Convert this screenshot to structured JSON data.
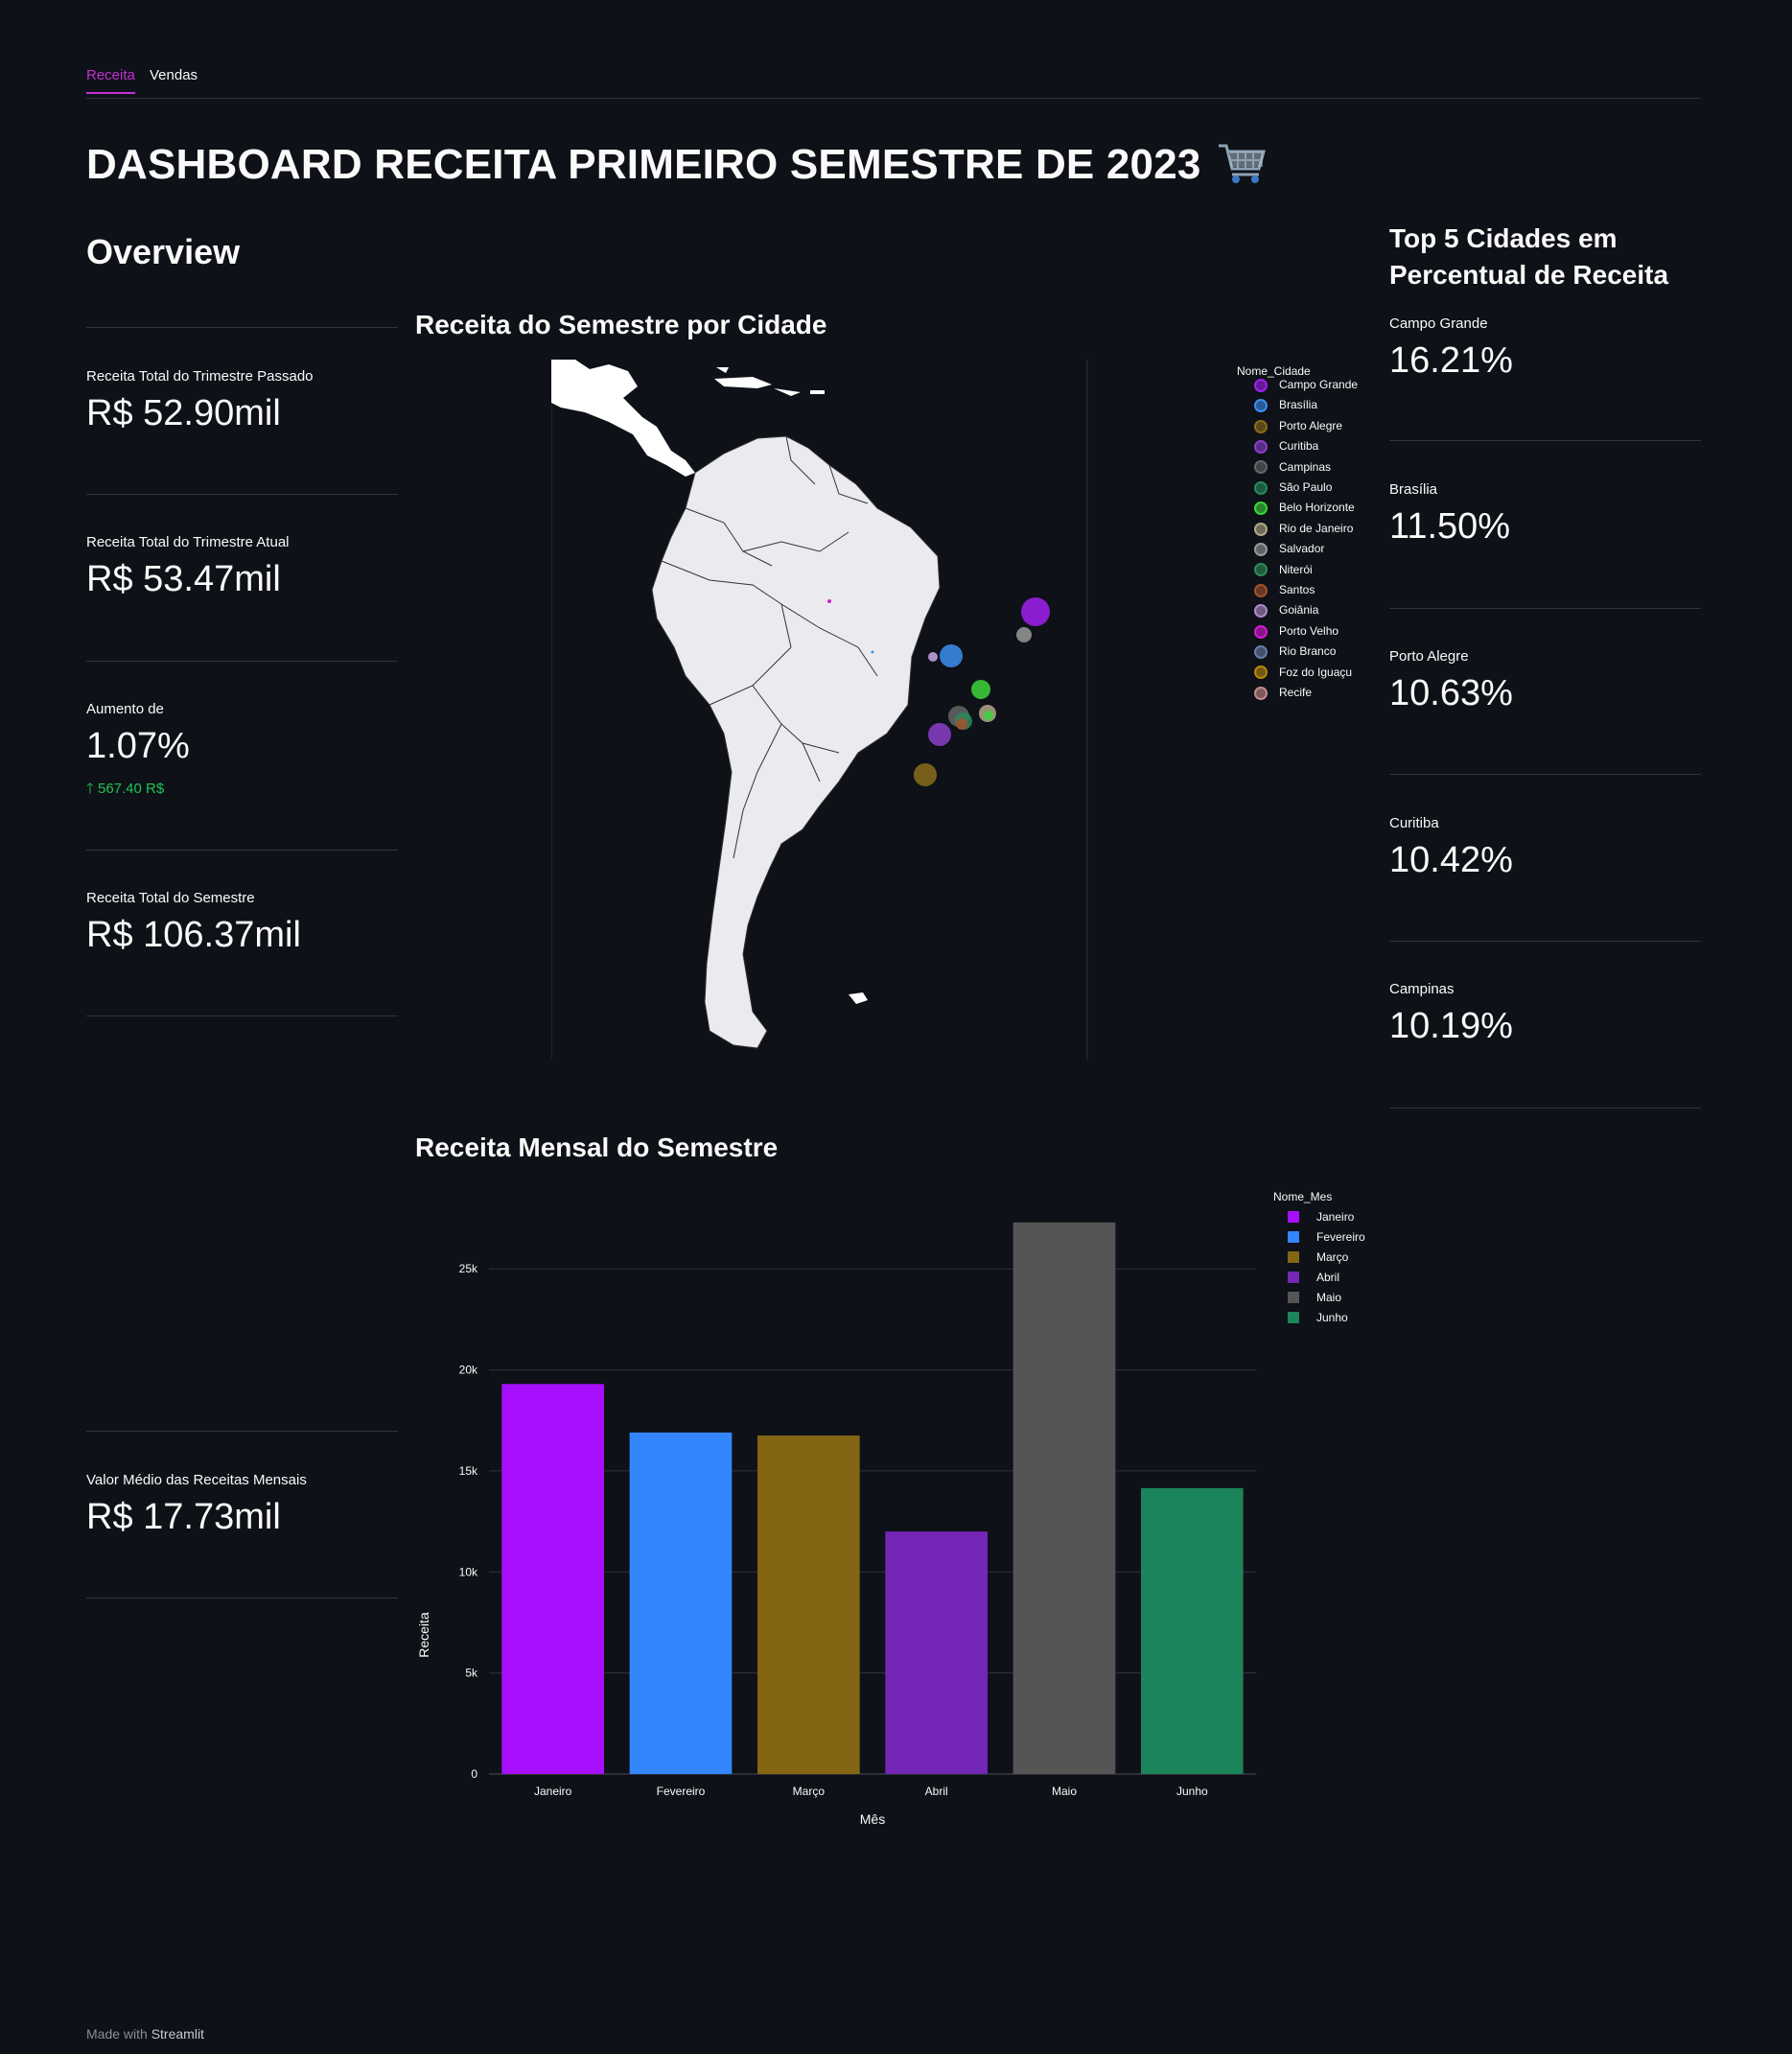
{
  "tabs": [
    {
      "label": "Receita",
      "active": true
    },
    {
      "label": "Vendas",
      "active": false
    }
  ],
  "page_title": "DASHBOARD RECEITA PRIMEIRO SEMESTRE DE 2023",
  "title_icon": "cart-icon",
  "overview": {
    "heading": "Overview",
    "metrics": [
      {
        "label": "Receita Total do Trimestre Passado",
        "value": "R$ 52.90mil"
      },
      {
        "label": "Receita Total do Trimestre Atual",
        "value": "R$ 53.47mil"
      },
      {
        "label": "Aumento de",
        "value": "1.07%",
        "delta": "567.40 R$"
      },
      {
        "label": "Receita Total do Semestre",
        "value": "R$ 106.37mil"
      },
      {
        "label": "Valor Médio das Receitas Mensais",
        "value": "R$ 17.73mil"
      }
    ]
  },
  "map_section": {
    "heading": "Receita do Semestre por Cidade",
    "legend_title": "Nome_Cidade",
    "legend_items": [
      {
        "name": "Campo Grande",
        "color": "#a020f0"
      },
      {
        "name": "Brasília",
        "color": "#3c8ef0"
      },
      {
        "name": "Porto Alegre",
        "color": "#8a6d1a"
      },
      {
        "name": "Curitiba",
        "color": "#8b3fc9"
      },
      {
        "name": "Campinas",
        "color": "#666666"
      },
      {
        "name": "São Paulo",
        "color": "#2a8a5a"
      },
      {
        "name": "Belo Horizonte",
        "color": "#3bd63b"
      },
      {
        "name": "Rio de Janeiro",
        "color": "#b0a888"
      },
      {
        "name": "Salvador",
        "color": "#9a9a9a"
      },
      {
        "name": "Niterói",
        "color": "#2e8b57"
      },
      {
        "name": "Santos",
        "color": "#a0522d"
      },
      {
        "name": "Goiânia",
        "color": "#b08ac8"
      },
      {
        "name": "Porto Velho",
        "color": "#d41cd4"
      },
      {
        "name": "Rio Branco",
        "color": "#6b7aa8"
      },
      {
        "name": "Foz do Iguaçu",
        "color": "#b8860b"
      },
      {
        "name": "Recife",
        "color": "#c48a8a"
      }
    ]
  },
  "top5": {
    "heading_line1": "Top 5 Cidades em",
    "heading_line2": "Percentual de Receita",
    "items": [
      {
        "city": "Campo Grande",
        "value": "16.21%"
      },
      {
        "city": "Brasília",
        "value": "11.50%"
      },
      {
        "city": "Porto Alegre",
        "value": "10.63%"
      },
      {
        "city": "Curitiba",
        "value": "10.42%"
      },
      {
        "city": "Campinas",
        "value": "10.19%"
      }
    ]
  },
  "chart_data": {
    "type": "bar",
    "title": "Receita Mensal do Semestre",
    "xlabel": "Mês",
    "ylabel": "Receita",
    "legend_title": "Nome_Mes",
    "legend_position": "top-right",
    "categories": [
      "Janeiro",
      "Fevereiro",
      "Março",
      "Abril",
      "Maio",
      "Junho"
    ],
    "values": [
      19300,
      16900,
      16750,
      12000,
      27300,
      14150
    ],
    "colors": [
      "#a80ffc",
      "#3486ff",
      "#836514",
      "#7426b7",
      "#555555",
      "#1c845a"
    ],
    "ylim": [
      0,
      28000
    ],
    "yticks": [
      0,
      5000,
      10000,
      15000,
      20000,
      25000
    ],
    "ytick_labels": [
      "0",
      "5k",
      "10k",
      "15k",
      "20k",
      "25k"
    ],
    "grid": true
  },
  "footer": {
    "prefix": "Made with",
    "brand": "Streamlit"
  }
}
